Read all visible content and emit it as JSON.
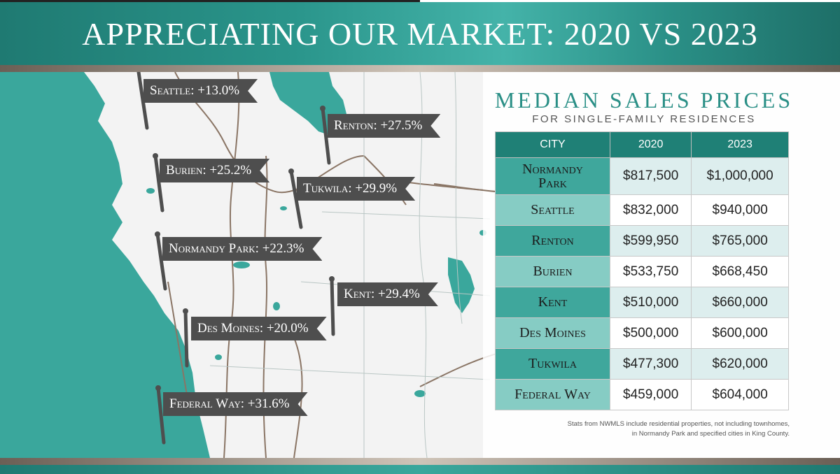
{
  "title": "APPRECIATING OUR MARKET: 2020 VS 2023",
  "colors": {
    "teal": "#2a958b",
    "dark_teal": "#1f8076",
    "label_gray": "#4e4e4e",
    "water": "#3aa79c"
  },
  "map_labels": [
    {
      "name": "Seattle",
      "change": "+13.0%"
    },
    {
      "name": "Renton",
      "change": "+27.5%"
    },
    {
      "name": "Burien",
      "change": "+25.2%"
    },
    {
      "name": "Tukwila",
      "change": "+29.9%"
    },
    {
      "name": "Normandy Park",
      "change": "+22.3%"
    },
    {
      "name": "Kent",
      "change": "+29.4%"
    },
    {
      "name": "Des Moines",
      "change": "+20.0%"
    },
    {
      "name": "Federal Way",
      "change": "+31.6%"
    }
  ],
  "panel": {
    "title": "MEDIAN SALES PRICES",
    "subtitle": "FOR SINGLE-FAMILY RESIDENCES",
    "headers": [
      "CITY",
      "2020",
      "2023"
    ],
    "rows": [
      {
        "city_line1": "Normandy",
        "city_line2": "Park",
        "v2020": "$817,500",
        "v2023": "$1,000,000"
      },
      {
        "city": "Seattle",
        "v2020": "$832,000",
        "v2023": "$940,000"
      },
      {
        "city": "Renton",
        "v2020": "$599,950",
        "v2023": "$765,000"
      },
      {
        "city": "Burien",
        "v2020": "$533,750",
        "v2023": "$668,450"
      },
      {
        "city": "Kent",
        "v2020": "$510,000",
        "v2023": "$660,000"
      },
      {
        "city": "Des Moines",
        "v2020": "$500,000",
        "v2023": "$600,000"
      },
      {
        "city": "Tukwila",
        "v2020": "$477,300",
        "v2023": "$620,000"
      },
      {
        "city": "Federal Way",
        "v2020": "$459,000",
        "v2023": "$604,000"
      }
    ],
    "note_line1": "Stats from NWMLS include residential properties, not including townhomes,",
    "note_line2": "in Normandy Park and specified cities in King County."
  }
}
